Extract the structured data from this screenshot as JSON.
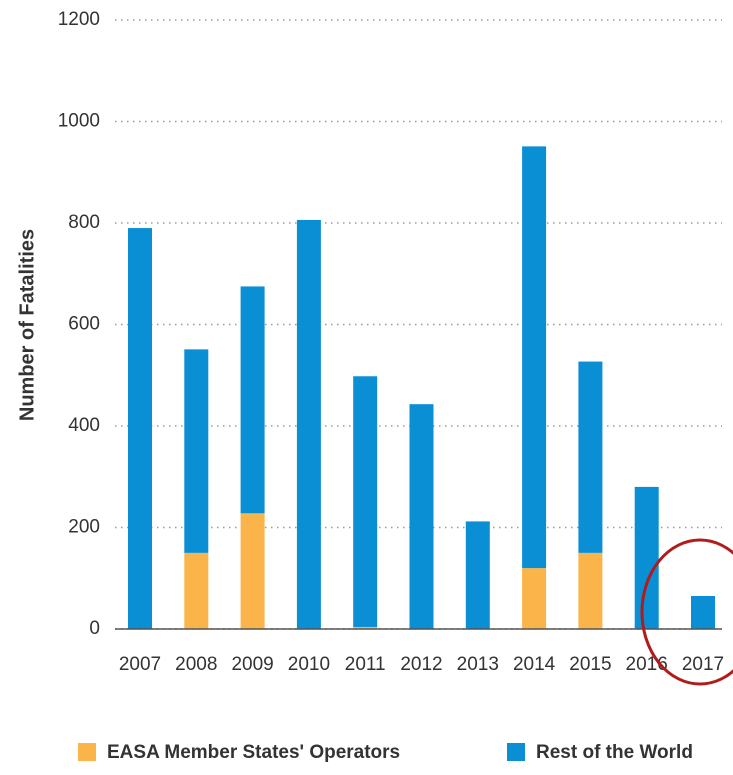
{
  "chart_data": {
    "type": "stacked_bar",
    "y_label": "Number of Fatalities",
    "categories": [
      "2007",
      "2008",
      "2009",
      "2010",
      "2011",
      "2012",
      "2013",
      "2014",
      "2015",
      "2016",
      "2017"
    ],
    "series": [
      {
        "name": "EASA Member States' Operators",
        "color": "#fbb44a",
        "values": [
          0,
          150,
          228,
          0,
          4,
          0,
          0,
          120,
          150,
          0,
          0
        ]
      },
      {
        "name": "Rest of the World",
        "color": "#0b8fd4",
        "values": [
          790,
          401,
          447,
          806,
          494,
          443,
          212,
          831,
          377,
          280,
          65
        ]
      }
    ],
    "ylim": [
      0,
      1200
    ],
    "yticks": [
      0,
      200,
      400,
      600,
      800,
      1000,
      1200
    ],
    "grid": true
  }
}
